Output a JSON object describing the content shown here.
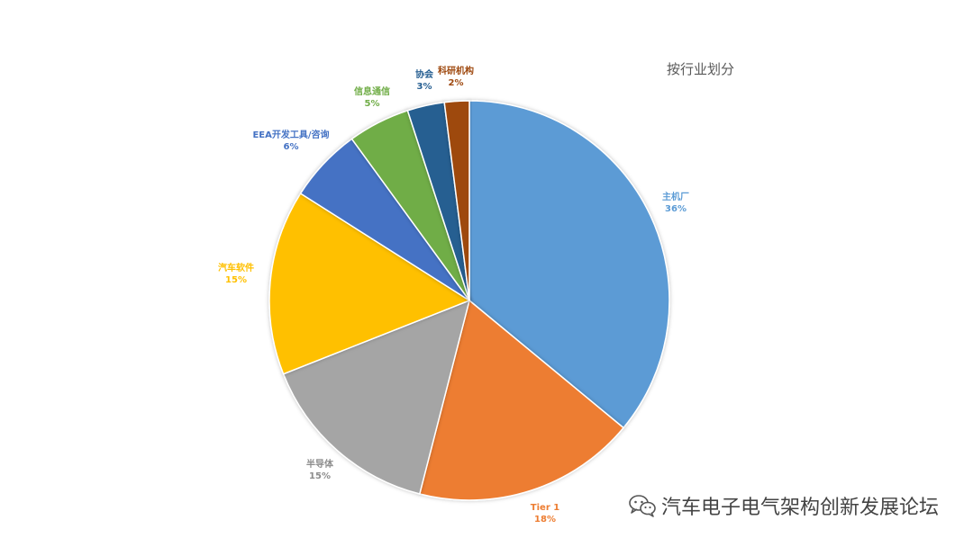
{
  "chart_data": {
    "type": "pie",
    "title": "按行业划分",
    "slices": [
      {
        "label": "主机厂",
        "value": 36,
        "value_label": "36%",
        "color": "#5B9BD5"
      },
      {
        "label": "Tier 1",
        "value": 18,
        "value_label": "18%",
        "color": "#ED7D31"
      },
      {
        "label": "半导体",
        "value": 15,
        "value_label": "15%",
        "color": "#A5A5A5"
      },
      {
        "label": "汽车软件",
        "value": 15,
        "value_label": "15%",
        "color": "#FFC000"
      },
      {
        "label": "EEA开发工具/咨询",
        "value": 6,
        "value_label": "6%",
        "color": "#4472C4"
      },
      {
        "label": "信息通信",
        "value": 5,
        "value_label": "5%",
        "color": "#70AD47"
      },
      {
        "label": "协会",
        "value": 3,
        "value_label": "3%",
        "color": "#255E91"
      },
      {
        "label": "科研机构",
        "value": 2,
        "value_label": "2%",
        "color": "#9E480E"
      }
    ]
  },
  "watermark": {
    "text": "汽车电子电气架构创新发展论坛",
    "icon": "wechat-icon"
  }
}
